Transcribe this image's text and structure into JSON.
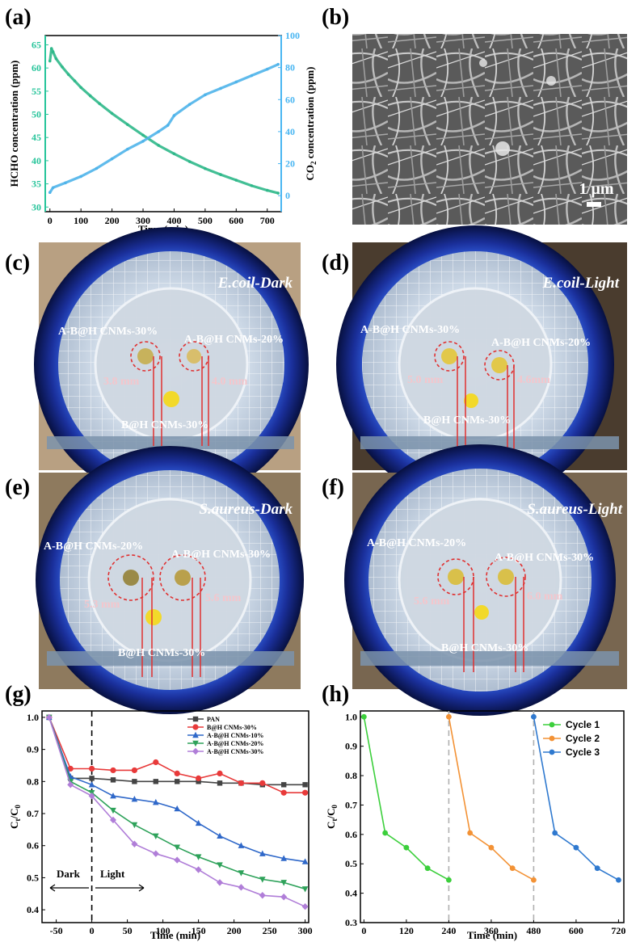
{
  "panels": {
    "a": "(a)",
    "b": "(b)",
    "c": "(c)",
    "d": "(d)",
    "e": "(e)",
    "f": "(f)",
    "g": "(g)",
    "h": "(h)"
  },
  "colors": {
    "hcho": "#2fb88a",
    "co2": "#4fb4ea",
    "axis_left": "#26c49a",
    "axis_right": "#49b6f2",
    "pan": "#444444",
    "bh30": "#e83a3a",
    "abh10": "#2f68c9",
    "abh20": "#2ea25a",
    "abh30": "#b07ed8",
    "cycle1": "#3ccf3c",
    "cycle2": "#f39235",
    "cycle3": "#2f79cf",
    "zone": "#e03030"
  },
  "sem": {
    "scale_bar": "1 μm"
  },
  "photos": {
    "c": {
      "title": "E.coil-Dark",
      "left": "A-B@H CNMs-30%",
      "right": "A-B@H CNMs-20%",
      "bottom": "B@H CNMs-30%",
      "mm_left": "3.8 mm",
      "mm_right": "4.0 mm"
    },
    "d": {
      "title": "E.coil-Light",
      "left": "A-B@H CNMs-30%",
      "right": "A-B@H CNMs-20%",
      "bottom": "B@H CNMs-30%",
      "mm_left": "5.0 mm",
      "mm_right": "4.6mm"
    },
    "e": {
      "title": "S.aureus-Dark",
      "left": "A-B@H CNMs-20%",
      "right": "A-B@H CNMs-30%",
      "bottom": "B@H CNMs-30%",
      "mm_left": "5.3 mm",
      "mm_right": "5.6 mm"
    },
    "f": {
      "title": "S.aureus-Light",
      "left": "A-B@H CNMs-20%",
      "right": "A-B@H CNMs-30%",
      "bottom": "B@H CNMs-30%",
      "mm_left": "5.6 mm",
      "mm_right": "6.0 mm"
    }
  },
  "chart_data": [
    {
      "id": "a",
      "type": "line",
      "xlabel": "Time (min)",
      "ylabel": "HCHO concentration (ppm)",
      "ylabel2_prefix": "CO",
      "ylabel2_sub": "2",
      "ylabel2_suffix": " concentration (ppm)",
      "xlim": [
        -15,
        745
      ],
      "ylim": [
        29,
        67
      ],
      "ylim2": [
        -10,
        100
      ],
      "xticks": [
        0,
        100,
        200,
        300,
        400,
        500,
        600,
        700
      ],
      "yticks": [
        30,
        35,
        40,
        45,
        50,
        55,
        60,
        65
      ],
      "yticks2": [
        0,
        20,
        40,
        60,
        80,
        100
      ],
      "series": [
        {
          "name": "HCHO",
          "axis": "left",
          "x": [
            0,
            5,
            10,
            20,
            40,
            60,
            80,
            100,
            130,
            160,
            200,
            250,
            300,
            350,
            400,
            450,
            500,
            550,
            600,
            650,
            700,
            735
          ],
          "y": [
            61.5,
            64.2,
            63.5,
            62.0,
            60.2,
            58.6,
            57.2,
            55.8,
            54.0,
            52.3,
            50.2,
            47.8,
            45.5,
            43.3,
            41.5,
            39.8,
            38.3,
            37.0,
            35.8,
            34.6,
            33.6,
            33.0
          ]
        },
        {
          "name": "CO2",
          "axis": "right",
          "x": [
            0,
            10,
            50,
            100,
            150,
            200,
            250,
            300,
            350,
            380,
            400,
            450,
            500,
            550,
            600,
            650,
            700,
            735
          ],
          "y": [
            2,
            5,
            8,
            12,
            17,
            23,
            29,
            34,
            40,
            44,
            50,
            57,
            63,
            67,
            71,
            75,
            79,
            82
          ]
        }
      ]
    },
    {
      "id": "g",
      "type": "line",
      "xlabel": "Time (min)",
      "ylabel_main": "C",
      "ylabel_sub1": "t",
      "ylabel_sep": "/C",
      "ylabel_sub2": "0",
      "xlim": [
        -70,
        305
      ],
      "ylim": [
        0.36,
        1.02
      ],
      "xticks": [
        -50,
        0,
        50,
        100,
        150,
        200,
        250,
        300
      ],
      "yticks": [
        0.4,
        0.5,
        0.6,
        0.7,
        0.8,
        0.9,
        1.0
      ],
      "dark_label": "Dark",
      "light_label": "Light",
      "x": [
        -60,
        -30,
        0,
        30,
        60,
        90,
        120,
        150,
        180,
        210,
        240,
        270,
        300
      ],
      "series": [
        {
          "name": "PAN",
          "color_key": "pan",
          "marker": "square",
          "values": [
            1.0,
            0.81,
            0.81,
            0.805,
            0.8,
            0.8,
            0.8,
            0.8,
            0.795,
            0.795,
            0.79,
            0.79,
            0.79
          ]
        },
        {
          "name": "B@H CNMs-30%",
          "color_key": "bh30",
          "marker": "circle",
          "values": [
            1.0,
            0.84,
            0.84,
            0.835,
            0.835,
            0.86,
            0.825,
            0.81,
            0.825,
            0.795,
            0.795,
            0.765,
            0.765
          ]
        },
        {
          "name": "A-B@H CNMs-10%",
          "color_key": "abh10",
          "marker": "triangle-up",
          "values": [
            1.0,
            0.815,
            0.79,
            0.755,
            0.745,
            0.735,
            0.715,
            0.67,
            0.63,
            0.6,
            0.575,
            0.56,
            0.55
          ]
        },
        {
          "name": "A-B@H CNMs-20%",
          "color_key": "abh20",
          "marker": "triangle-down",
          "values": [
            1.0,
            0.8,
            0.765,
            0.71,
            0.665,
            0.63,
            0.595,
            0.565,
            0.54,
            0.515,
            0.495,
            0.485,
            0.465
          ]
        },
        {
          "name": "A-B@H CNMs-30%",
          "color_key": "abh30",
          "marker": "diamond",
          "values": [
            1.0,
            0.79,
            0.755,
            0.68,
            0.605,
            0.575,
            0.555,
            0.525,
            0.485,
            0.47,
            0.445,
            0.44,
            0.41
          ]
        }
      ]
    },
    {
      "id": "h",
      "type": "line",
      "xlabel": "Time (min)",
      "ylabel_main": "C",
      "ylabel_sub1": "t",
      "ylabel_sep": "/C",
      "ylabel_sub2": "0",
      "xlim": [
        -10,
        735
      ],
      "ylim": [
        0.3,
        1.02
      ],
      "xticks": [
        0,
        120,
        240,
        360,
        480,
        600,
        720
      ],
      "yticks": [
        0.3,
        0.4,
        0.5,
        0.6,
        0.7,
        0.8,
        0.9,
        1.0
      ],
      "dividers": [
        240,
        480
      ],
      "series": [
        {
          "name": "Cycle 1",
          "color_key": "cycle1",
          "x": [
            0,
            60,
            120,
            180,
            240
          ],
          "values": [
            1.0,
            0.605,
            0.555,
            0.485,
            0.445
          ]
        },
        {
          "name": "Cycle 2",
          "color_key": "cycle2",
          "x": [
            240,
            300,
            360,
            420,
            480
          ],
          "values": [
            1.0,
            0.605,
            0.555,
            0.485,
            0.445
          ]
        },
        {
          "name": "Cycle 3",
          "color_key": "cycle3",
          "x": [
            480,
            540,
            600,
            660,
            720
          ],
          "values": [
            1.0,
            0.605,
            0.555,
            0.485,
            0.445
          ]
        }
      ]
    }
  ]
}
